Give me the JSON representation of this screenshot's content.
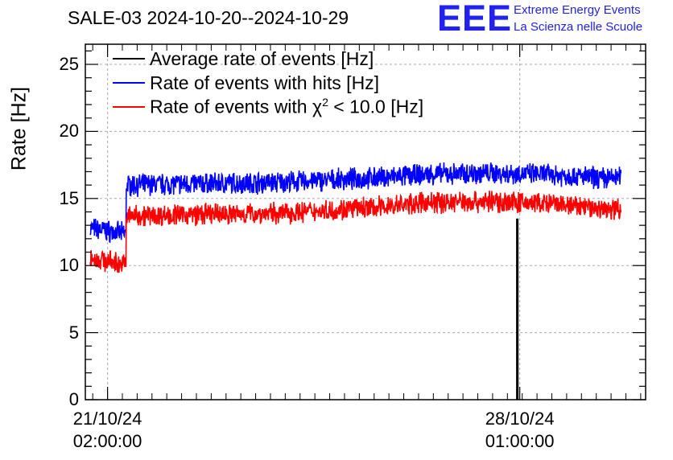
{
  "title": "SALE-03 2024-10-20--2024-10-29",
  "logo": {
    "mark": "EEE",
    "line1": "Extreme Energy Events",
    "line2": "La Scienza nelle Scuole"
  },
  "colors": {
    "black": "#000000",
    "blue": "#0000ff",
    "red": "#ff0000",
    "logo": "#2222ee",
    "grid": "#aaaaaa"
  },
  "chart_data": {
    "type": "line",
    "title": "SALE-03 2024-10-20--2024-10-29",
    "ylabel": "Rate [Hz]",
    "ylim": [
      0,
      26.5
    ],
    "yticks": [
      0,
      5,
      10,
      15,
      20,
      25
    ],
    "ytick_labels": [
      "0",
      "5",
      "10",
      "15",
      "20",
      "25"
    ],
    "x_range": [
      "2024-10-20 17:00",
      "2024-10-30 04:00"
    ],
    "xticks": [
      {
        "x": "2024-10-21 02:00:00",
        "label_date": "21/10/24",
        "label_time": "02:00:00"
      },
      {
        "x": "2024-10-28 01:00:00",
        "label_date": "28/10/24",
        "label_time": "01:00:00"
      }
    ],
    "grid": true,
    "legend_position": "top-left",
    "series": [
      {
        "name": "Average rate of events [Hz]",
        "color": "#000000",
        "x": [
          "2024-10-28 00:00",
          "2024-10-28 00:01",
          "2024-10-28 00:02"
        ],
        "y": [
          0,
          13.5,
          0
        ]
      },
      {
        "name": "Rate of events with hits [Hz]",
        "color": "#0000ff",
        "x": [
          "2024-10-20 19:00",
          "2024-10-21 08:00",
          "2024-10-21 09:30",
          "2024-10-22 12:00",
          "2024-10-24 00:00",
          "2024-10-25 12:00",
          "2024-10-26 12:00",
          "2024-10-27 12:00",
          "2024-10-28 12:00",
          "2024-10-29 12:00",
          "2024-10-29 18:00"
        ],
        "y": [
          12.8,
          12.4,
          16.0,
          16.1,
          16.2,
          16.5,
          16.8,
          16.9,
          16.8,
          16.5,
          16.6
        ],
        "noise": 0.7
      },
      {
        "name": "Rate of events with χ2 < 10.0 [Hz]",
        "color": "#ff0000",
        "x": [
          "2024-10-20 19:00",
          "2024-10-21 08:00",
          "2024-10-21 09:30",
          "2024-10-22 12:00",
          "2024-10-24 00:00",
          "2024-10-25 12:00",
          "2024-10-26 12:00",
          "2024-10-27 12:00",
          "2024-10-28 12:00",
          "2024-10-29 12:00",
          "2024-10-29 18:00"
        ],
        "y": [
          10.6,
          10.1,
          13.7,
          13.8,
          13.9,
          14.3,
          14.7,
          14.8,
          14.6,
          14.2,
          14.3
        ],
        "noise": 0.7
      }
    ]
  }
}
